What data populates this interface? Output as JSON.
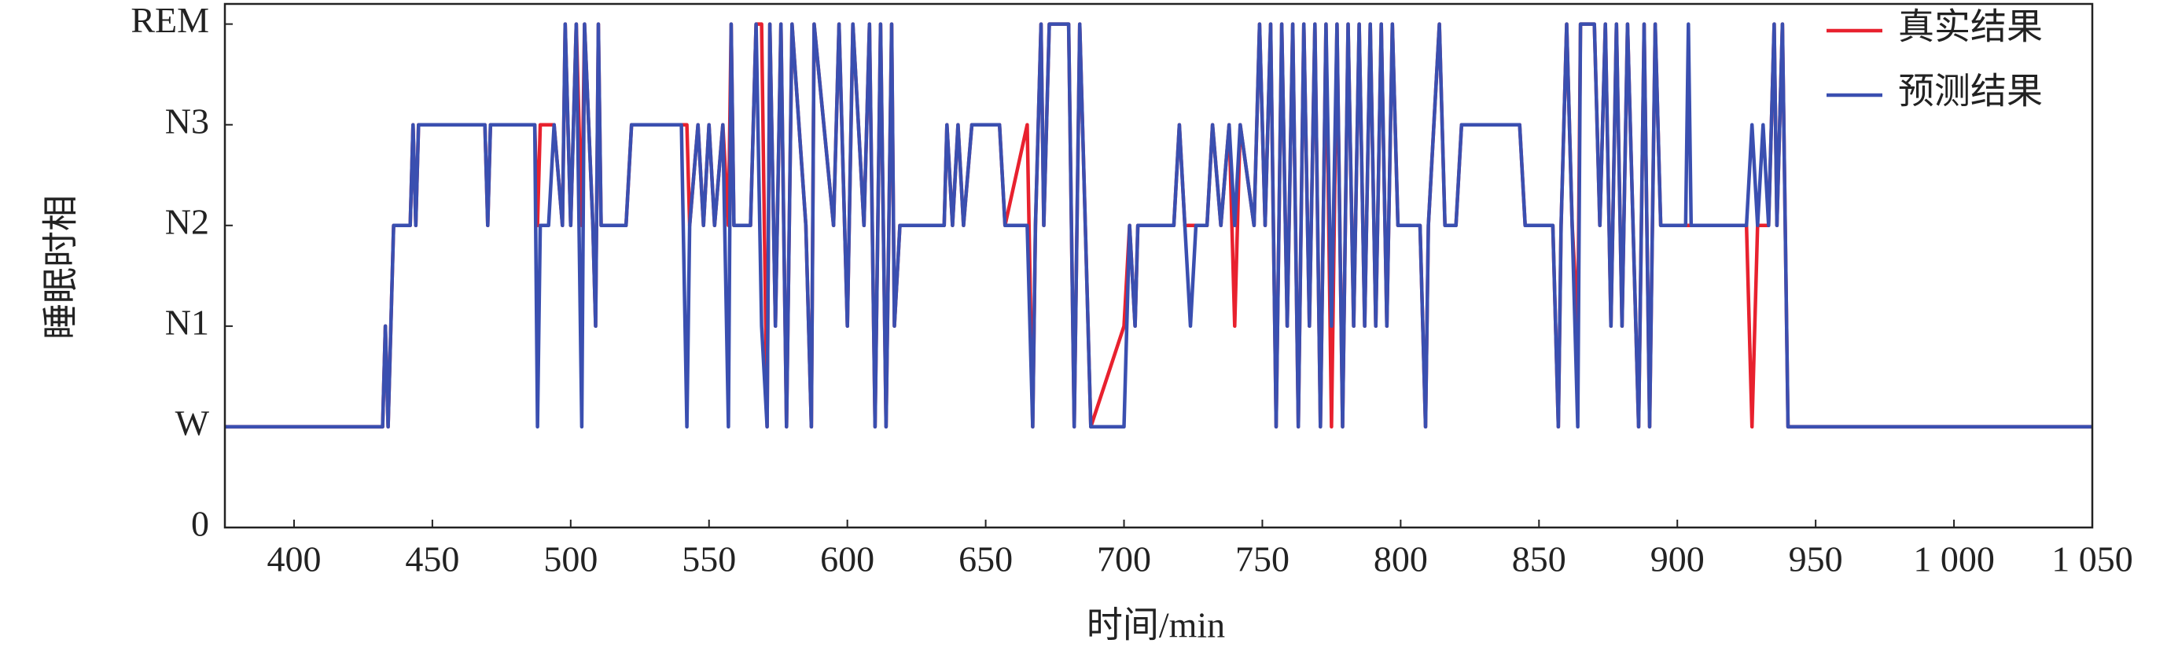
{
  "chart_data": {
    "type": "line",
    "xlabel": "时间/min",
    "ylabel": "睡眠时相",
    "xlim": [
      375,
      1050
    ],
    "ylim": [
      0,
      5.2
    ],
    "xticks": [
      400,
      450,
      500,
      550,
      600,
      650,
      700,
      750,
      800,
      850,
      900,
      950,
      {
        "value": 1000,
        "label": "1 000"
      },
      {
        "value": 1050,
        "label": "1 050"
      }
    ],
    "yticks": [
      0,
      {
        "value": 1,
        "label": "W"
      },
      {
        "value": 2,
        "label": "N1"
      },
      {
        "value": 3,
        "label": "N2"
      },
      {
        "value": 4,
        "label": "N3"
      },
      {
        "value": 5,
        "label": "REM"
      }
    ],
    "legend": "upper right",
    "x": [
      375,
      432,
      433,
      434,
      435,
      436,
      442,
      443,
      444,
      445,
      469,
      470,
      471,
      487,
      488,
      489,
      492,
      494,
      497,
      498,
      500,
      502,
      504,
      505,
      508,
      509,
      510,
      511,
      520,
      522,
      540,
      542,
      543,
      546,
      548,
      550,
      552,
      555,
      557,
      558,
      559,
      565,
      567,
      569,
      571,
      572,
      574,
      576,
      578,
      580,
      585,
      587,
      588,
      595,
      597,
      600,
      602,
      606,
      608,
      610,
      612,
      614,
      616,
      617,
      619,
      635,
      636,
      638,
      640,
      642,
      645,
      655,
      657,
      665,
      667,
      668,
      670,
      671,
      673,
      680,
      682,
      684,
      686,
      688,
      700,
      702,
      704,
      705,
      718,
      720,
      722,
      724,
      726,
      730,
      732,
      735,
      738,
      740,
      742,
      747,
      749,
      751,
      753,
      755,
      757,
      759,
      761,
      763,
      765,
      767,
      769,
      771,
      773,
      775,
      777,
      779,
      781,
      783,
      785,
      787,
      789,
      791,
      793,
      795,
      797,
      799,
      807,
      809,
      810,
      814,
      816,
      820,
      822,
      843,
      845,
      855,
      857,
      858,
      860,
      862,
      864,
      865,
      870,
      872,
      874,
      876,
      878,
      880,
      882,
      884,
      886,
      888,
      890,
      892,
      894,
      903,
      904,
      905,
      925,
      927,
      929,
      931,
      933,
      935,
      936,
      938,
      940,
      1050
    ],
    "series": [
      {
        "name": "真实结果",
        "color": "#e8212e",
        "values": [
          1,
          1,
          2,
          1,
          2,
          3,
          3,
          4,
          3,
          4,
          4,
          3,
          4,
          4,
          3,
          4,
          4,
          4,
          3,
          5,
          3,
          5,
          3,
          5,
          3,
          2,
          5,
          3,
          3,
          4,
          4,
          4,
          3,
          4,
          3,
          4,
          3,
          4,
          3,
          5,
          3,
          3,
          5,
          5,
          1,
          5,
          2,
          5,
          1,
          5,
          3,
          1,
          5,
          3,
          5,
          2,
          5,
          3,
          5,
          1,
          5,
          1,
          5,
          2,
          3,
          3,
          4,
          3,
          4,
          3,
          4,
          4,
          3,
          4,
          1,
          3,
          5,
          3,
          5,
          5,
          1,
          5,
          3,
          1,
          2,
          3,
          2,
          3,
          3,
          4,
          3,
          3,
          3,
          3,
          4,
          3,
          4,
          2,
          4,
          3,
          5,
          3,
          5,
          1,
          5,
          2,
          5,
          1,
          5,
          2,
          5,
          1,
          5,
          1,
          5,
          1,
          5,
          2,
          5,
          2,
          5,
          2,
          5,
          2,
          5,
          3,
          3,
          1,
          3,
          5,
          3,
          3,
          4,
          4,
          3,
          3,
          1,
          3,
          5,
          3,
          2,
          5,
          5,
          3,
          5,
          2,
          5,
          2,
          5,
          3,
          1,
          5,
          1,
          5,
          3,
          3,
          3,
          3,
          3,
          1,
          3,
          3,
          3,
          5,
          3,
          5,
          1,
          1
        ]
      },
      {
        "name": "预测结果",
        "color": "#3a4fb0",
        "values": [
          1,
          1,
          2,
          1,
          2,
          3,
          3,
          4,
          3,
          4,
          4,
          3,
          4,
          4,
          1,
          3,
          3,
          4,
          3,
          5,
          3,
          5,
          1,
          5,
          3,
          2,
          5,
          3,
          3,
          4,
          4,
          1,
          3,
          4,
          3,
          4,
          3,
          4,
          1,
          5,
          3,
          3,
          5,
          2,
          1,
          5,
          2,
          5,
          1,
          5,
          3,
          1,
          5,
          3,
          5,
          2,
          5,
          3,
          5,
          1,
          5,
          1,
          5,
          2,
          3,
          3,
          4,
          3,
          4,
          3,
          4,
          4,
          3,
          3,
          1,
          3,
          5,
          3,
          5,
          5,
          1,
          5,
          3,
          1,
          1,
          3,
          2,
          3,
          3,
          4,
          3,
          2,
          3,
          3,
          4,
          3,
          4,
          3,
          4,
          3,
          5,
          3,
          5,
          1,
          5,
          2,
          5,
          1,
          5,
          2,
          5,
          1,
          5,
          2,
          5,
          1,
          5,
          2,
          5,
          2,
          5,
          2,
          5,
          2,
          5,
          3,
          3,
          1,
          3,
          5,
          3,
          3,
          4,
          4,
          3,
          3,
          1,
          3,
          5,
          3,
          1,
          5,
          5,
          3,
          5,
          2,
          5,
          2,
          5,
          3,
          1,
          5,
          1,
          5,
          3,
          3,
          5,
          3,
          3,
          4,
          3,
          4,
          3,
          5,
          3,
          5,
          1,
          1
        ]
      }
    ]
  }
}
